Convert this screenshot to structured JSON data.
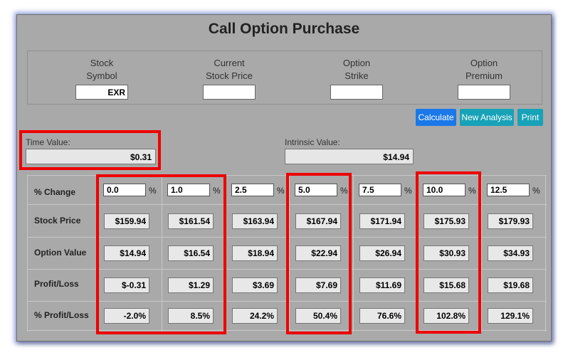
{
  "title": "Call Option Purchase",
  "inputs": [
    {
      "label1": "Stock",
      "label2": "Symbol",
      "value": "EXR"
    },
    {
      "label1": "Current",
      "label2": "Stock Price",
      "value": ""
    },
    {
      "label1": "Option",
      "label2": "Strike",
      "value": ""
    },
    {
      "label1": "Option",
      "label2": "Premium",
      "value": ""
    }
  ],
  "buttons": {
    "calculate": "Calculate",
    "new_analysis": "New Analysis",
    "print": "Print"
  },
  "time_value": {
    "label": "Time Value:",
    "value": "$0.31"
  },
  "intrinsic_value": {
    "label": "Intrinsic Value:",
    "value": "$14.94"
  },
  "table": {
    "row_labels": [
      "% Change",
      "Stock Price",
      "Option Value",
      "Profit/Loss",
      "% Profit/Loss"
    ],
    "pct_symbol": "%",
    "columns": [
      {
        "change": "0.0",
        "stock_price": "$159.94",
        "option_value": "$14.94",
        "profit_loss": "$-0.31",
        "pct_profit_loss": "-2.0%"
      },
      {
        "change": "1.0",
        "stock_price": "$161.54",
        "option_value": "$16.54",
        "profit_loss": "$1.29",
        "pct_profit_loss": "8.5%"
      },
      {
        "change": "2.5",
        "stock_price": "$163.94",
        "option_value": "$18.94",
        "profit_loss": "$3.69",
        "pct_profit_loss": "24.2%"
      },
      {
        "change": "5.0",
        "stock_price": "$167.94",
        "option_value": "$22.94",
        "profit_loss": "$7.69",
        "pct_profit_loss": "50.4%"
      },
      {
        "change": "7.5",
        "stock_price": "$171.94",
        "option_value": "$26.94",
        "profit_loss": "$11.69",
        "pct_profit_loss": "76.6%"
      },
      {
        "change": "10.0",
        "stock_price": "$175.93",
        "option_value": "$30.93",
        "profit_loss": "$15.68",
        "pct_profit_loss": "102.8%"
      },
      {
        "change": "12.5",
        "stock_price": "$179.93",
        "option_value": "$34.93",
        "profit_loss": "$19.68",
        "pct_profit_loss": "129.1%"
      }
    ]
  },
  "colors": {
    "highlight": "#ee0000",
    "primary_button": "#1a78e8",
    "info_button": "#17a2b8",
    "panel_bg": "#a9a9a9"
  }
}
